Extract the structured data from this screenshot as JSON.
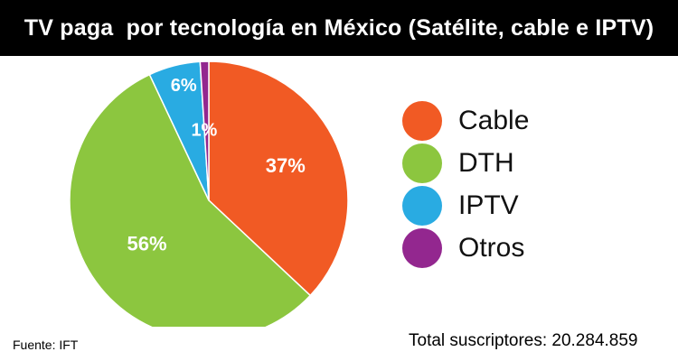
{
  "header": {
    "title": "TV paga  por tecnología en México (Satélite, cable e IPTV)"
  },
  "chart_data": {
    "type": "pie",
    "title": "TV paga  por tecnología en México (Satélite, cable e IPTV)",
    "slices": [
      {
        "name": "Cable",
        "value": 37,
        "label": "37%",
        "color": "#f15a24"
      },
      {
        "name": "DTH",
        "value": 56,
        "label": "56%",
        "color": "#8cc63f"
      },
      {
        "name": "IPTV",
        "value": 6,
        "label": "6%",
        "color": "#29abe2"
      },
      {
        "name": "Otros",
        "value": 1,
        "label": "1%",
        "color": "#93278f"
      }
    ],
    "legend_position": "right"
  },
  "legend": {
    "items": [
      {
        "label": "Cable",
        "color": "#f15a24"
      },
      {
        "label": "DTH",
        "color": "#8cc63f"
      },
      {
        "label": "IPTV",
        "color": "#29abe2"
      },
      {
        "label": "Otros",
        "color": "#93278f"
      }
    ]
  },
  "footer": {
    "source": "Fuente: IFT",
    "total": "Total suscriptores: 20.284.859"
  }
}
